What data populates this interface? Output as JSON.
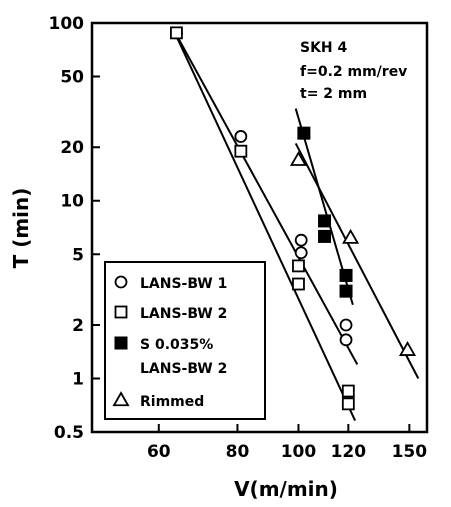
{
  "chart_data": {
    "type": "scatter",
    "x_scale": "log",
    "y_scale": "log",
    "xlabel": "V(m/min)",
    "ylabel": "T (min)",
    "xlim": [
      47,
      160
    ],
    "ylim": [
      0.5,
      100
    ],
    "x_ticks": [
      {
        "value": 60,
        "label": "60"
      },
      {
        "value": 80,
        "label": "80"
      },
      {
        "value": 100,
        "label": "100"
      },
      {
        "value": 120,
        "label": "120"
      },
      {
        "value": 150,
        "label": "150"
      }
    ],
    "y_ticks": [
      {
        "value": 100,
        "label": "100"
      },
      {
        "value": 50,
        "label": "50"
      },
      {
        "value": 20,
        "label": "20"
      },
      {
        "value": 10,
        "label": "10"
      },
      {
        "value": 5,
        "label": "5"
      },
      {
        "value": 2,
        "label": "2"
      },
      {
        "value": 1,
        "label": "1"
      },
      {
        "value": 0.5,
        "label": "0.5"
      }
    ],
    "annotations": [
      "SKH 4",
      "f=0.2 mm/rev",
      "t= 2 mm"
    ],
    "legend_position": "bottom-left",
    "series": [
      {
        "name": "LANS-BW 1",
        "marker": "circle-open",
        "points": [
          [
            64,
            88
          ],
          [
            81,
            23
          ],
          [
            101,
            6.0
          ],
          [
            101,
            5.1
          ],
          [
            119,
            2.0
          ],
          [
            119,
            1.65
          ]
        ],
        "fit_line": [
          [
            63,
            95
          ],
          [
            124,
            1.2
          ]
        ]
      },
      {
        "name": "LANS-BW 2",
        "marker": "square-open",
        "points": [
          [
            64,
            88
          ],
          [
            81,
            19
          ],
          [
            100,
            4.3
          ],
          [
            100,
            3.4
          ],
          [
            120,
            0.85
          ],
          [
            120,
            0.72
          ]
        ],
        "fit_line": [
          [
            63,
            95
          ],
          [
            123,
            0.58
          ]
        ]
      },
      {
        "name": "S 0.035% LANS-BW 2",
        "marker": "square-filled",
        "points": [
          [
            102,
            24
          ],
          [
            110,
            7.7
          ],
          [
            110,
            6.3
          ],
          [
            119,
            3.8
          ],
          [
            119,
            3.1
          ]
        ],
        "fit_line": [
          [
            99,
            33
          ],
          [
            122,
            2.6
          ]
        ]
      },
      {
        "name": "Rimmed",
        "marker": "triangle-open",
        "points": [
          [
            100,
            17
          ],
          [
            121,
            6.2
          ],
          [
            149,
            1.45
          ]
        ],
        "fit_line": [
          [
            99,
            21
          ],
          [
            155,
            1.0
          ]
        ]
      }
    ]
  }
}
